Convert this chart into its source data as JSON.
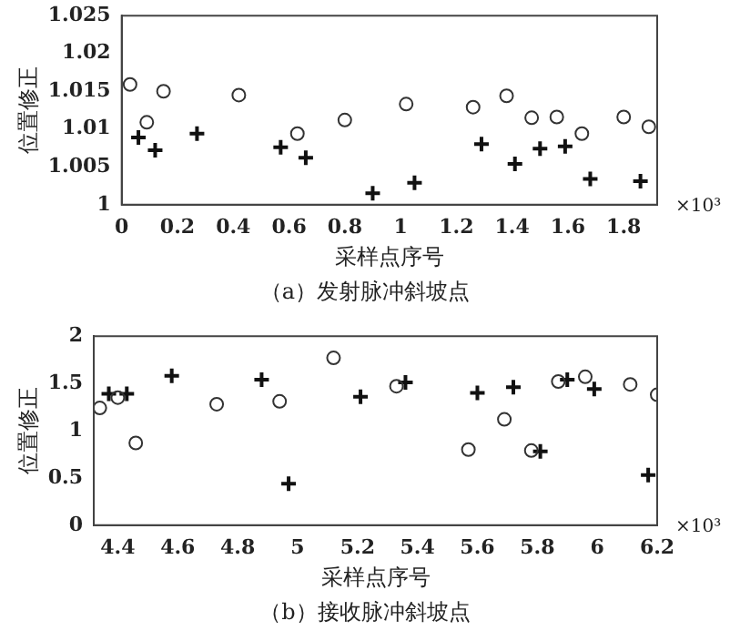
{
  "chart_data": [
    {
      "type": "scatter",
      "xlabel": "采样点序号",
      "ylabel": "位置修正",
      "xlim": [
        0,
        1.92
      ],
      "xticks": [
        0,
        0.2,
        0.4,
        0.6,
        0.8,
        1,
        1.2,
        1.4,
        1.6,
        1.8
      ],
      "ylim": [
        1,
        1.025
      ],
      "yticks": [
        1,
        1.005,
        1.01,
        1.015,
        1.02,
        1.025
      ],
      "grid": false,
      "legend": false,
      "annotations": [
        "×10³",
        "（a）发射脉冲斜坡点"
      ],
      "series": [
        {
          "color": "#333333",
          "marker": "circle",
          "x": [
            0.03,
            0.09,
            0.15,
            0.42,
            0.63,
            0.8,
            1.02,
            1.26,
            1.38,
            1.47,
            1.56,
            1.65,
            1.8,
            1.89
          ],
          "values": [
            1.0159,
            1.0109,
            1.015,
            1.0145,
            1.0094,
            1.0112,
            1.0133,
            1.0129,
            1.0144,
            1.0115,
            1.0116,
            1.0094,
            1.0116,
            1.0103
          ]
        },
        {
          "color": "#111111",
          "marker": "cross",
          "x": [
            0.06,
            0.12,
            0.27,
            0.57,
            0.66,
            0.9,
            1.05,
            1.29,
            1.41,
            1.5,
            1.59,
            1.68,
            1.86
          ],
          "values": [
            1.0089,
            1.0072,
            1.0094,
            1.0076,
            1.0062,
            1.0015,
            1.0029,
            1.008,
            1.0054,
            1.0074,
            1.0077,
            1.0034,
            1.0031
          ]
        }
      ]
    },
    {
      "type": "scatter",
      "xlabel": "采样点序号",
      "ylabel": "位置修正",
      "xlim": [
        4.32,
        6.2
      ],
      "xticks": [
        4.4,
        4.6,
        4.8,
        5,
        5.2,
        5.4,
        5.6,
        5.8,
        6,
        6.2
      ],
      "ylim": [
        0,
        2
      ],
      "yticks": [
        0,
        0.5,
        1,
        1.5,
        2
      ],
      "grid": false,
      "legend": false,
      "annotations": [
        "×10³",
        "（b）接收脉冲斜坡点"
      ],
      "series": [
        {
          "color": "#333333",
          "marker": "circle",
          "x": [
            4.34,
            4.4,
            4.46,
            4.73,
            4.94,
            5.12,
            5.33,
            5.57,
            5.69,
            5.78,
            5.87,
            5.96,
            6.11,
            6.2
          ],
          "values": [
            1.24,
            1.35,
            0.87,
            1.28,
            1.31,
            1.77,
            1.47,
            0.8,
            1.12,
            0.79,
            1.52,
            1.57,
            1.49,
            1.38
          ]
        },
        {
          "color": "#111111",
          "marker": "cross",
          "x": [
            4.37,
            4.43,
            4.58,
            4.88,
            4.97,
            5.21,
            5.36,
            5.6,
            5.72,
            5.81,
            5.9,
            5.99,
            6.17
          ],
          "values": [
            1.39,
            1.39,
            1.58,
            1.54,
            0.44,
            1.36,
            1.51,
            1.4,
            1.46,
            0.78,
            1.54,
            1.44,
            0.53
          ]
        }
      ]
    }
  ]
}
